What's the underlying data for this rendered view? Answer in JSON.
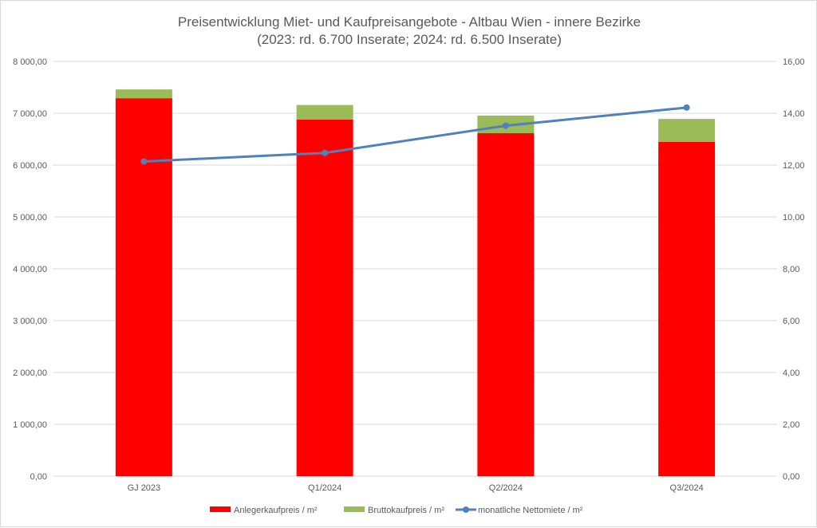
{
  "chart_data": {
    "type": "bar",
    "title": "Preisentwicklung Miet- und Kaufpreisangebote - Altbau Wien - innere Bezirke",
    "subtitle": "(2023: rd. 6.700 Inserate;  2024: rd. 6.500 Inserate)",
    "categories": [
      "GJ 2023",
      "Q1/2024",
      "Q2/2024",
      "Q3/2024"
    ],
    "series": [
      {
        "name": "Anlegerkaufpreis / m²",
        "type": "bar",
        "axis": "left",
        "color": "#ff0000",
        "values": [
          7290,
          6880,
          6615,
          6450
        ]
      },
      {
        "name": "Bruttokaufpreis / m²",
        "type": "bar",
        "axis": "left",
        "stacked_on": "Anlegerkaufpreis / m²",
        "color": "#9bbb59",
        "values": [
          7460,
          7160,
          6955,
          6890
        ]
      },
      {
        "name": "monatliche Nettomiete / m²",
        "type": "line",
        "axis": "right",
        "color": "#4f81bd",
        "values": [
          12.14,
          12.47,
          13.52,
          14.22
        ]
      }
    ],
    "ylim": [
      0,
      8000
    ],
    "y2lim": [
      0,
      16
    ],
    "yticks": [
      "0,00",
      "1 000,00",
      "2 000,00",
      "3 000,00",
      "4 000,00",
      "5 000,00",
      "6 000,00",
      "7 000,00",
      "8 000,00"
    ],
    "y2ticks": [
      "0,00",
      "2,00",
      "4,00",
      "6,00",
      "8,00",
      "10,00",
      "12,00",
      "14,00",
      "16,00"
    ],
    "grid": true,
    "legend": "bottom"
  }
}
